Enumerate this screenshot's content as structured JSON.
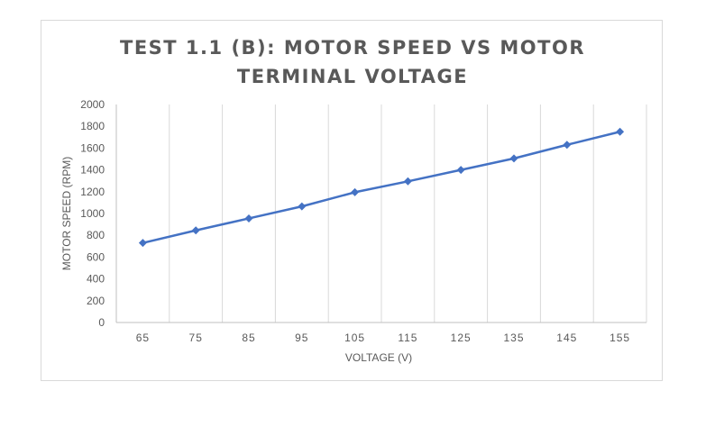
{
  "chart_data": {
    "type": "line",
    "title_line1": "TEST 1.1 (B): MOTOR SPEED VS MOTOR",
    "title_line2": "TERMINAL VOLTAGE",
    "xlabel": "VOLTAGE (V)",
    "ylabel": "MOTOR SPEED (RPM)",
    "categories": [
      "65",
      "75",
      "85",
      "95",
      "105",
      "115",
      "125",
      "135",
      "145",
      "155"
    ],
    "series": [
      {
        "values": [
          730,
          845,
          955,
          1065,
          1195,
          1295,
          1400,
          1505,
          1630,
          1750
        ]
      }
    ],
    "yticks": [
      "0",
      "200",
      "400",
      "600",
      "800",
      "1000",
      "1200",
      "1400",
      "1600",
      "2000"
    ],
    "yticks_all": [
      0,
      200,
      400,
      600,
      800,
      1000,
      1200,
      1400,
      1600,
      1800,
      2000
    ],
    "ylim": [
      0,
      2000
    ],
    "grid": "vertical",
    "legend": "none",
    "colors": {
      "line": "#4472c4",
      "grid": "#d9d9d9",
      "axis": "#bfbfbf",
      "text": "#595959"
    }
  }
}
